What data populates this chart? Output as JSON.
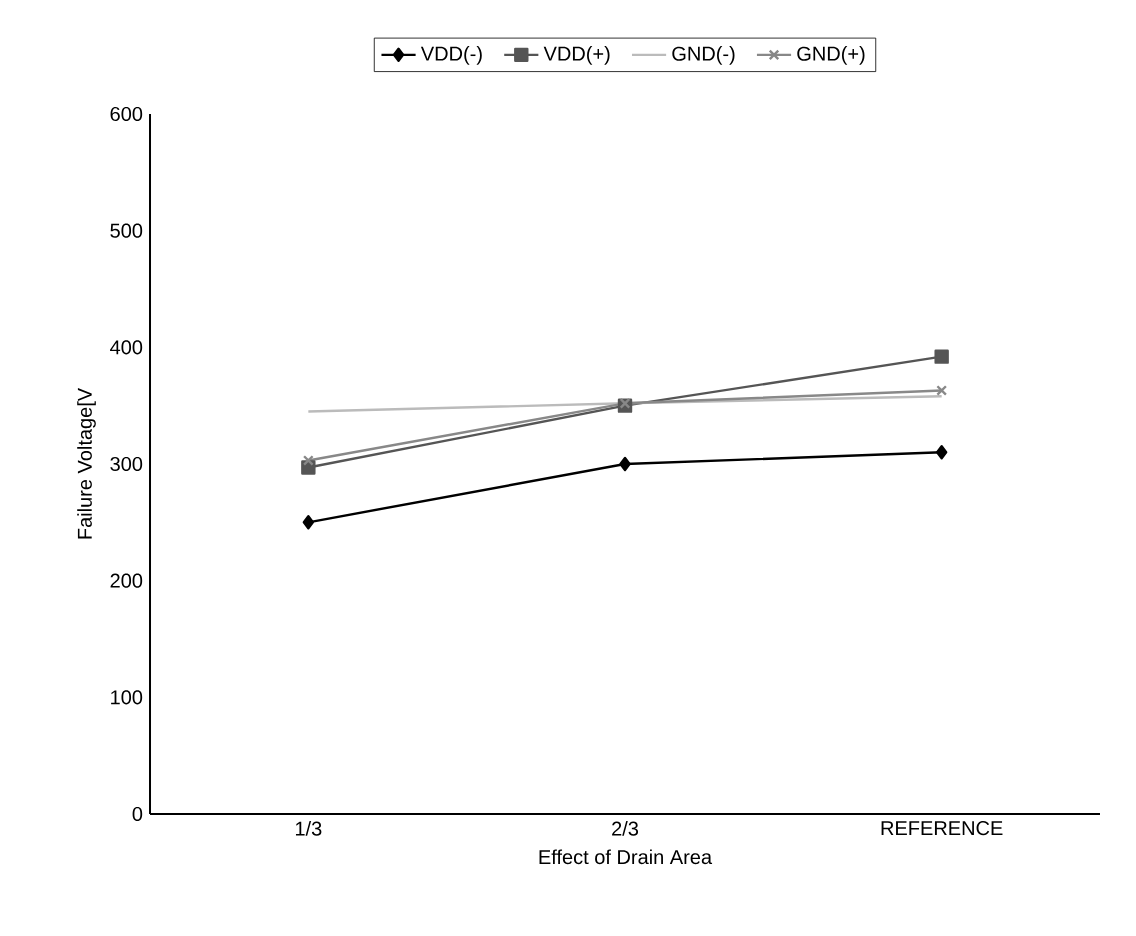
{
  "chart_data": {
    "type": "line",
    "xlabel": "Effect of Drain Area",
    "ylabel": "Failure Voltage[V",
    "categories": [
      "1/3",
      "2/3",
      "REFERENCE"
    ],
    "series": [
      {
        "name": "VDD(-)",
        "color": "#000000",
        "marker": "diamond",
        "values": [
          250,
          300,
          310
        ]
      },
      {
        "name": "VDD(+)",
        "color": "#555555",
        "marker": "square",
        "values": [
          297,
          350,
          392
        ]
      },
      {
        "name": "GND(-)",
        "color": "#bbbbbb",
        "marker": "none",
        "values": [
          345,
          352,
          358
        ]
      },
      {
        "name": "GND(+)",
        "color": "#888888",
        "marker": "cross",
        "values": [
          303,
          352,
          363
        ]
      }
    ],
    "ylim": [
      0,
      600
    ],
    "yticks": [
      0,
      100,
      200,
      300,
      400,
      500,
      600
    ],
    "legend": "top"
  }
}
